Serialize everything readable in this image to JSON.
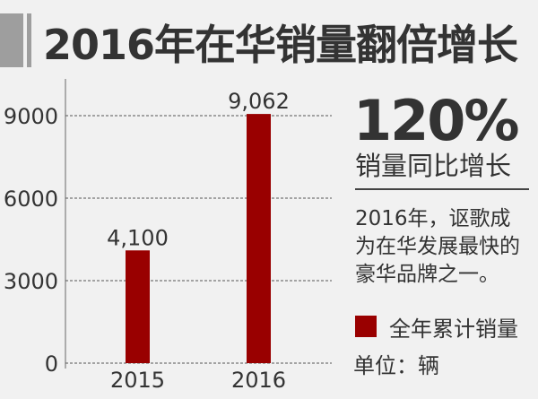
{
  "header": {
    "title": "2016年在华销量翻倍增长"
  },
  "highlight": {
    "value": "120%",
    "caption": "销量同比增长"
  },
  "description": [
    "2016年，讴歌成",
    "为在华发展最快的",
    "豪华品牌之一。"
  ],
  "legend": {
    "label": "全年累计销量",
    "color": "#990000"
  },
  "unit": "单位：辆",
  "chart_data": {
    "type": "bar",
    "categories": [
      "2015",
      "2016"
    ],
    "values": [
      4100,
      9062
    ],
    "data_labels": [
      "4,100",
      "9,062"
    ],
    "series": [
      {
        "name": "全年累计销量",
        "values": [
          4100,
          9062
        ]
      }
    ],
    "yticks": [
      0,
      3000,
      6000,
      9000
    ],
    "ylim": [
      0,
      10000
    ],
    "grid": true,
    "grid_style": "dashed",
    "bar_color": "#990000",
    "title": "",
    "xlabel": "",
    "ylabel": ""
  }
}
